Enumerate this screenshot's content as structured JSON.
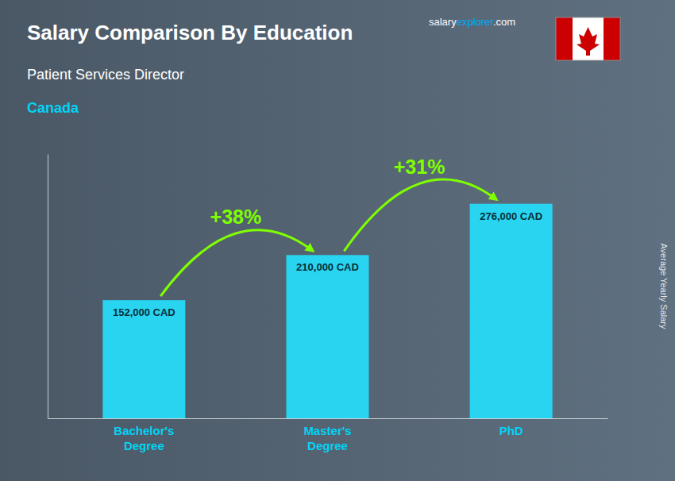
{
  "chart_data": {
    "type": "bar",
    "title": "Salary Comparison By Education",
    "subtitle": "Patient Services Director",
    "ylabel": "Average Yearly Salary",
    "categories": [
      "Bachelor's\nDegree",
      "Master's\nDegree",
      "PhD"
    ],
    "values": [
      152000,
      210000,
      276000
    ],
    "value_labels": [
      "152,000 CAD",
      "210,000 CAD",
      "276,000 CAD"
    ],
    "data_labels": true,
    "color": "#29d4f0",
    "ylim": [
      0,
      340000
    ],
    "tick_labels": "x",
    "grid": false,
    "annotations": [
      "+38%",
      "+31%",
      "Canada",
      "salary",
      "explorer",
      ".com"
    ]
  }
}
